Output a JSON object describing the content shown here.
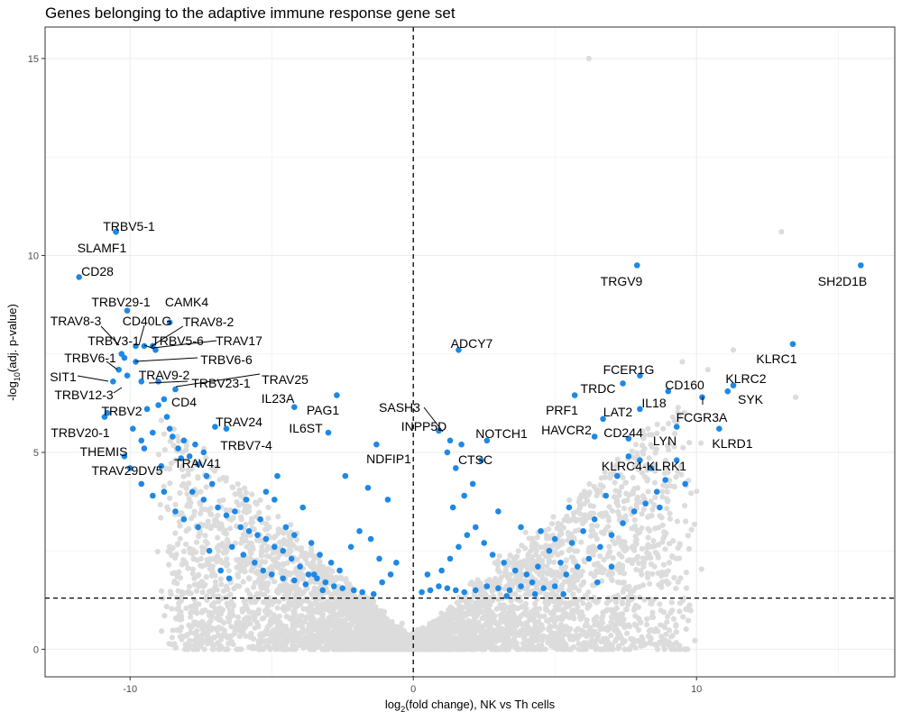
{
  "chart_data": {
    "type": "scatter",
    "title": "Genes belonging to the adaptive immune response gene set",
    "xlabel": {
      "prefix": "log",
      "subscript": "2",
      "suffix": "(fold change), NK vs Th cells"
    },
    "ylabel": {
      "prefix": "-log",
      "subscript": "10",
      "suffix": "(adj. p-value)"
    },
    "xlim": [
      -13,
      17
    ],
    "ylim": [
      -0.7,
      15.8
    ],
    "x_ticks": [
      -10,
      0,
      10
    ],
    "y_ticks": [
      0,
      5,
      10,
      15
    ],
    "grid": true,
    "reference_lines": {
      "x": 0,
      "y": 1.3
    },
    "colors": {
      "background": "#dcdcdc",
      "highlight": "#1e88e5",
      "grid": "#ebebeb",
      "border": "#333333"
    },
    "highlighted_series": {
      "labeled_genes": [
        {
          "gene": "TRBV5-1",
          "x": -10.5,
          "y": 10.6
        },
        {
          "gene": "SLAMF1",
          "x": -10.5,
          "y": 10.6
        },
        {
          "gene": "CD28",
          "x": -11.8,
          "y": 9.45
        },
        {
          "gene": "TRBV29-1",
          "x": -10.1,
          "y": 8.6
        },
        {
          "gene": "CAMK4",
          "x": -8.6,
          "y": 8.3
        },
        {
          "gene": "TRAV8-3",
          "x": -10.3,
          "y": 7.5
        },
        {
          "gene": "CD40LG",
          "x": -9.8,
          "y": 7.7
        },
        {
          "gene": "TRAV8-2",
          "x": -9.2,
          "y": 7.7
        },
        {
          "gene": "TRBV3-1",
          "x": -10.2,
          "y": 7.4
        },
        {
          "gene": "TRBV5-6",
          "x": -9.5,
          "y": 7.7
        },
        {
          "gene": "TRAV17",
          "x": -9.1,
          "y": 7.6
        },
        {
          "gene": "TRBV6-1",
          "x": -10.4,
          "y": 7.1
        },
        {
          "gene": "TRBV6-6",
          "x": -9.8,
          "y": 7.3
        },
        {
          "gene": "SIT1",
          "x": -10.1,
          "y": 6.95
        },
        {
          "gene": "TRAV9-2",
          "x": -9.6,
          "y": 6.8
        },
        {
          "gene": "TRBV23-1",
          "x": -9.0,
          "y": 6.8
        },
        {
          "gene": "TRAV25",
          "x": -8.4,
          "y": 6.6
        },
        {
          "gene": "TRBV12-3",
          "x": -10.6,
          "y": 6.8
        },
        {
          "gene": "CD4",
          "x": -8.8,
          "y": 6.35
        },
        {
          "gene": "IL23A",
          "x": -4.2,
          "y": 6.15
        },
        {
          "gene": "PAG1",
          "x": -2.7,
          "y": 6.45
        },
        {
          "gene": "TRBV2",
          "x": -10.8,
          "y": 6.0
        },
        {
          "gene": "TRAV24",
          "x": -7.0,
          "y": 5.65
        },
        {
          "gene": "IL6ST",
          "x": -3.0,
          "y": 5.5
        },
        {
          "gene": "TRBV20-1",
          "x": -10.9,
          "y": 5.9
        },
        {
          "gene": "TRBV7-4",
          "x": -6.6,
          "y": 5.6
        },
        {
          "gene": "THEMIS",
          "x": -9.5,
          "y": 5.1
        },
        {
          "gene": "TRAV41",
          "x": -8.2,
          "y": 4.85
        },
        {
          "gene": "TRAV29DV5",
          "x": -8.9,
          "y": 4.65
        },
        {
          "gene": "NDFIP1",
          "x": -1.3,
          "y": 5.2
        },
        {
          "gene": "ADCY7",
          "x": 1.6,
          "y": 7.6
        },
        {
          "gene": "SASH3",
          "x": 1.3,
          "y": 5.3
        },
        {
          "gene": "INPP5D",
          "x": 0.9,
          "y": 5.55
        },
        {
          "gene": "NOTCH1",
          "x": 2.6,
          "y": 5.3
        },
        {
          "gene": "CTSC",
          "x": 1.7,
          "y": 5.2
        },
        {
          "gene": "TRGV9",
          "x": 7.9,
          "y": 9.75
        },
        {
          "gene": "SH2D1B",
          "x": 15.8,
          "y": 9.75
        },
        {
          "gene": "KLRC1",
          "x": 13.4,
          "y": 7.75
        },
        {
          "gene": "FCER1G",
          "x": 8.0,
          "y": 6.95
        },
        {
          "gene": "KLRC2",
          "x": 11.3,
          "y": 6.7
        },
        {
          "gene": "TRDC",
          "x": 7.4,
          "y": 6.75
        },
        {
          "gene": "CD160",
          "x": 9.0,
          "y": 6.55
        },
        {
          "gene": "SYK",
          "x": 11.1,
          "y": 6.55
        },
        {
          "gene": "IL18",
          "x": 8.0,
          "y": 6.1
        },
        {
          "gene": "PRF1",
          "x": 5.7,
          "y": 6.45
        },
        {
          "gene": "LAT2",
          "x": 6.7,
          "y": 5.85
        },
        {
          "gene": "FCGR3A",
          "x": 10.2,
          "y": 6.4
        },
        {
          "gene": "HAVCR2",
          "x": 6.4,
          "y": 5.4
        },
        {
          "gene": "CD244",
          "x": 7.6,
          "y": 5.35
        },
        {
          "gene": "LYN",
          "x": 9.3,
          "y": 5.65
        },
        {
          "gene": "KLRD1",
          "x": 10.8,
          "y": 5.6
        },
        {
          "gene": "KLRC4-KLRK1",
          "x": 8.0,
          "y": 4.8
        }
      ],
      "unlabeled_points": [
        [
          -9.6,
          5.3
        ],
        [
          -9.2,
          5.5
        ],
        [
          -8.6,
          5.6
        ],
        [
          -8.3,
          5.1
        ],
        [
          -7.9,
          4.9
        ],
        [
          -7.6,
          4.7
        ],
        [
          -7.3,
          4.4
        ],
        [
          -7.1,
          4.2
        ],
        [
          -7.8,
          4.0
        ],
        [
          -7.4,
          3.8
        ],
        [
          -6.9,
          3.6
        ],
        [
          -6.6,
          3.4
        ],
        [
          -6.3,
          3.5
        ],
        [
          -6.1,
          3.1
        ],
        [
          -5.8,
          3.0
        ],
        [
          -5.5,
          2.9
        ],
        [
          -5.2,
          2.8
        ],
        [
          -4.9,
          2.6
        ],
        [
          -4.6,
          2.5
        ],
        [
          -4.3,
          2.3
        ],
        [
          -4.0,
          2.1
        ],
        [
          -3.7,
          1.9
        ],
        [
          -3.4,
          1.8
        ],
        [
          -3.1,
          1.7
        ],
        [
          -2.8,
          1.6
        ],
        [
          -2.5,
          1.55
        ],
        [
          -2.1,
          1.5
        ],
        [
          -1.8,
          1.45
        ],
        [
          -1.4,
          1.4
        ],
        [
          -1.1,
          1.7
        ],
        [
          -0.8,
          1.9
        ],
        [
          -0.6,
          2.2
        ],
        [
          -5.6,
          2.2
        ],
        [
          -5.3,
          2.0
        ],
        [
          -5.0,
          1.9
        ],
        [
          -4.6,
          1.8
        ],
        [
          -4.2,
          1.75
        ],
        [
          -3.8,
          1.65
        ],
        [
          -3.5,
          1.9
        ],
        [
          -3.2,
          1.5
        ],
        [
          -6.4,
          2.6
        ],
        [
          -6.0,
          2.4
        ],
        [
          -7.6,
          3.1
        ],
        [
          -8.1,
          3.3
        ],
        [
          -8.4,
          3.5
        ],
        [
          -8.8,
          4.0
        ],
        [
          -9.2,
          3.9
        ],
        [
          -9.6,
          4.2
        ],
        [
          -10.0,
          4.6
        ],
        [
          -10.2,
          4.9
        ],
        [
          -9.9,
          5.6
        ],
        [
          -9.4,
          6.1
        ],
        [
          -9.0,
          6.2
        ],
        [
          -8.7,
          5.9
        ],
        [
          -8.5,
          5.4
        ],
        [
          -8.1,
          5.3
        ],
        [
          -7.7,
          5.2
        ],
        [
          -7.4,
          5.0
        ],
        [
          -5.2,
          4.0
        ],
        [
          -4.9,
          3.8
        ],
        [
          -5.4,
          3.3
        ],
        [
          -4.5,
          3.1
        ],
        [
          -4.2,
          2.9
        ],
        [
          -3.9,
          3.6
        ],
        [
          -3.6,
          2.7
        ],
        [
          -3.3,
          2.4
        ],
        [
          -2.9,
          2.2
        ],
        [
          -2.6,
          2.0
        ],
        [
          -2.2,
          2.6
        ],
        [
          -1.9,
          3.0
        ],
        [
          -1.5,
          2.8
        ],
        [
          -1.2,
          2.3
        ],
        [
          -0.9,
          3.8
        ],
        [
          -1.6,
          4.1
        ],
        [
          -2.4,
          4.4
        ],
        [
          -6.8,
          2.0
        ],
        [
          -6.5,
          1.8
        ],
        [
          -7.2,
          2.5
        ],
        [
          -5.9,
          3.8
        ],
        [
          -4.8,
          4.4
        ],
        [
          0.3,
          1.45
        ],
        [
          0.6,
          1.5
        ],
        [
          0.9,
          1.6
        ],
        [
          1.2,
          1.55
        ],
        [
          1.5,
          1.5
        ],
        [
          1.8,
          1.45
        ],
        [
          2.2,
          1.5
        ],
        [
          2.6,
          1.6
        ],
        [
          3.0,
          1.55
        ],
        [
          3.4,
          1.5
        ],
        [
          3.8,
          1.6
        ],
        [
          4.2,
          1.7
        ],
        [
          4.6,
          1.55
        ],
        [
          5.0,
          1.6
        ],
        [
          5.4,
          1.9
        ],
        [
          5.8,
          2.1
        ],
        [
          6.2,
          2.3
        ],
        [
          6.6,
          2.6
        ],
        [
          7.0,
          2.9
        ],
        [
          7.4,
          3.2
        ],
        [
          7.8,
          3.5
        ],
        [
          8.2,
          3.7
        ],
        [
          8.6,
          4.0
        ],
        [
          8.9,
          4.3
        ],
        [
          1.0,
          2.0
        ],
        [
          1.3,
          2.3
        ],
        [
          1.6,
          2.6
        ],
        [
          1.9,
          2.9
        ],
        [
          2.2,
          3.1
        ],
        [
          2.5,
          2.7
        ],
        [
          2.8,
          2.4
        ],
        [
          3.2,
          2.2
        ],
        [
          3.6,
          2.0
        ],
        [
          4.0,
          1.9
        ],
        [
          4.4,
          2.1
        ],
        [
          4.8,
          2.5
        ],
        [
          5.2,
          2.2
        ],
        [
          5.6,
          2.7
        ],
        [
          6.0,
          3.0
        ],
        [
          6.4,
          3.3
        ],
        [
          1.4,
          3.6
        ],
        [
          1.8,
          3.9
        ],
        [
          2.1,
          4.2
        ],
        [
          1.5,
          4.6
        ],
        [
          1.2,
          5.0
        ],
        [
          2.4,
          4.8
        ],
        [
          3.0,
          3.5
        ],
        [
          3.8,
          3.1
        ],
        [
          4.5,
          3.0
        ],
        [
          5.0,
          2.8
        ],
        [
          5.5,
          3.6
        ],
        [
          6.8,
          3.9
        ],
        [
          7.2,
          4.4
        ],
        [
          7.6,
          4.9
        ],
        [
          8.4,
          4.6
        ],
        [
          8.7,
          3.6
        ],
        [
          9.3,
          4.8
        ],
        [
          9.6,
          4.2
        ],
        [
          5.3,
          1.4
        ],
        [
          4.3,
          1.4
        ],
        [
          3.3,
          1.35
        ],
        [
          6.5,
          1.7
        ],
        [
          7.0,
          2.1
        ],
        [
          0.5,
          1.9
        ]
      ]
    }
  }
}
